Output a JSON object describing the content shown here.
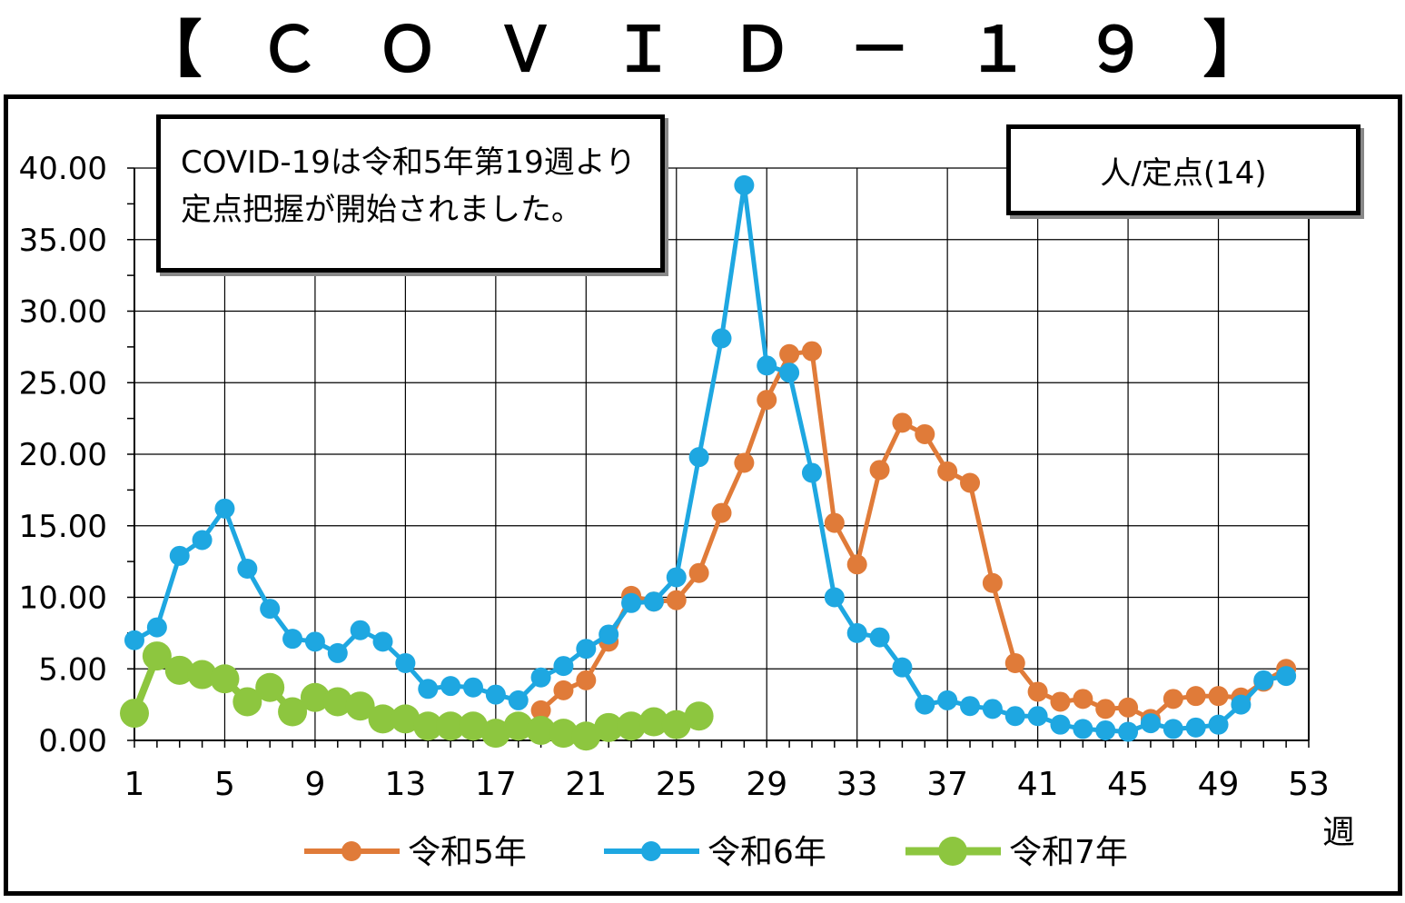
{
  "title": "【ＣＯＶＩＤ－１９】",
  "note_text": "COVID-19は令和5年第19週より定点把握が開始されました。",
  "chart_data": {
    "type": "line",
    "title": "【ＣＯＶＩＤ－１９】",
    "ylabel": "人/定点(14)",
    "xlabel": "週",
    "ylim": [
      0,
      40
    ],
    "xlim": [
      1,
      53
    ],
    "y_ticks": [
      "0.00",
      "5.00",
      "10.00",
      "15.00",
      "20.00",
      "25.00",
      "30.00",
      "35.00",
      "40.00"
    ],
    "x_ticks": [
      "1",
      "5",
      "9",
      "13",
      "17",
      "21",
      "25",
      "29",
      "33",
      "37",
      "41",
      "45",
      "49",
      "53"
    ],
    "grid": true,
    "legend": "bottom",
    "series": [
      {
        "name": "令和5年",
        "color": "#E07B39",
        "x": [
          19,
          20,
          21,
          22,
          23,
          24,
          25,
          26,
          27,
          28,
          29,
          30,
          31,
          32,
          33,
          34,
          35,
          36,
          37,
          38,
          39,
          40,
          41,
          42,
          43,
          44,
          45,
          46,
          47,
          48,
          49,
          50,
          51,
          52
        ],
        "values": [
          2.1,
          3.5,
          4.2,
          6.9,
          10.1,
          9.7,
          9.8,
          11.7,
          15.9,
          19.4,
          23.8,
          27.0,
          27.2,
          15.2,
          12.3,
          18.9,
          22.2,
          21.4,
          18.8,
          18.0,
          11.0,
          5.4,
          3.4,
          2.7,
          2.9,
          2.2,
          2.3,
          1.5,
          2.9,
          3.1,
          3.1,
          3.0,
          4.1,
          5.0
        ]
      },
      {
        "name": "令和6年",
        "color": "#1EA7E1",
        "x": [
          1,
          2,
          3,
          4,
          5,
          6,
          7,
          8,
          9,
          10,
          11,
          12,
          13,
          14,
          15,
          16,
          17,
          18,
          19,
          20,
          21,
          22,
          23,
          24,
          25,
          26,
          27,
          28,
          29,
          30,
          31,
          32,
          33,
          34,
          35,
          36,
          37,
          38,
          39,
          40,
          41,
          42,
          43,
          44,
          45,
          46,
          47,
          48,
          49,
          50,
          51,
          52
        ],
        "values": [
          7.0,
          7.9,
          12.9,
          14.0,
          16.2,
          12.0,
          9.2,
          7.1,
          6.9,
          6.1,
          7.7,
          6.9,
          5.4,
          3.6,
          3.8,
          3.7,
          3.2,
          2.8,
          4.4,
          5.2,
          6.4,
          7.4,
          9.6,
          9.7,
          11.4,
          19.8,
          28.1,
          38.8,
          26.2,
          25.7,
          18.7,
          10.0,
          7.5,
          7.2,
          5.1,
          2.5,
          2.8,
          2.4,
          2.2,
          1.7,
          1.7,
          1.1,
          0.8,
          0.7,
          0.6,
          1.2,
          0.8,
          0.9,
          1.1,
          2.5,
          4.2,
          4.5
        ]
      },
      {
        "name": "令和7年",
        "color": "#8DC63F",
        "x": [
          1,
          2,
          3,
          4,
          5,
          6,
          7,
          8,
          9,
          10,
          11,
          12,
          13,
          14,
          15,
          16,
          17,
          18,
          19,
          20,
          21,
          22,
          23,
          24,
          25,
          26
        ],
        "values": [
          1.9,
          5.9,
          4.9,
          4.6,
          4.3,
          2.7,
          3.7,
          2.0,
          3.0,
          2.7,
          2.4,
          1.5,
          1.5,
          1.0,
          1.0,
          1.0,
          0.5,
          1.0,
          0.7,
          0.5,
          0.3,
          0.9,
          1.0,
          1.3,
          1.1,
          1.7
        ]
      }
    ]
  }
}
